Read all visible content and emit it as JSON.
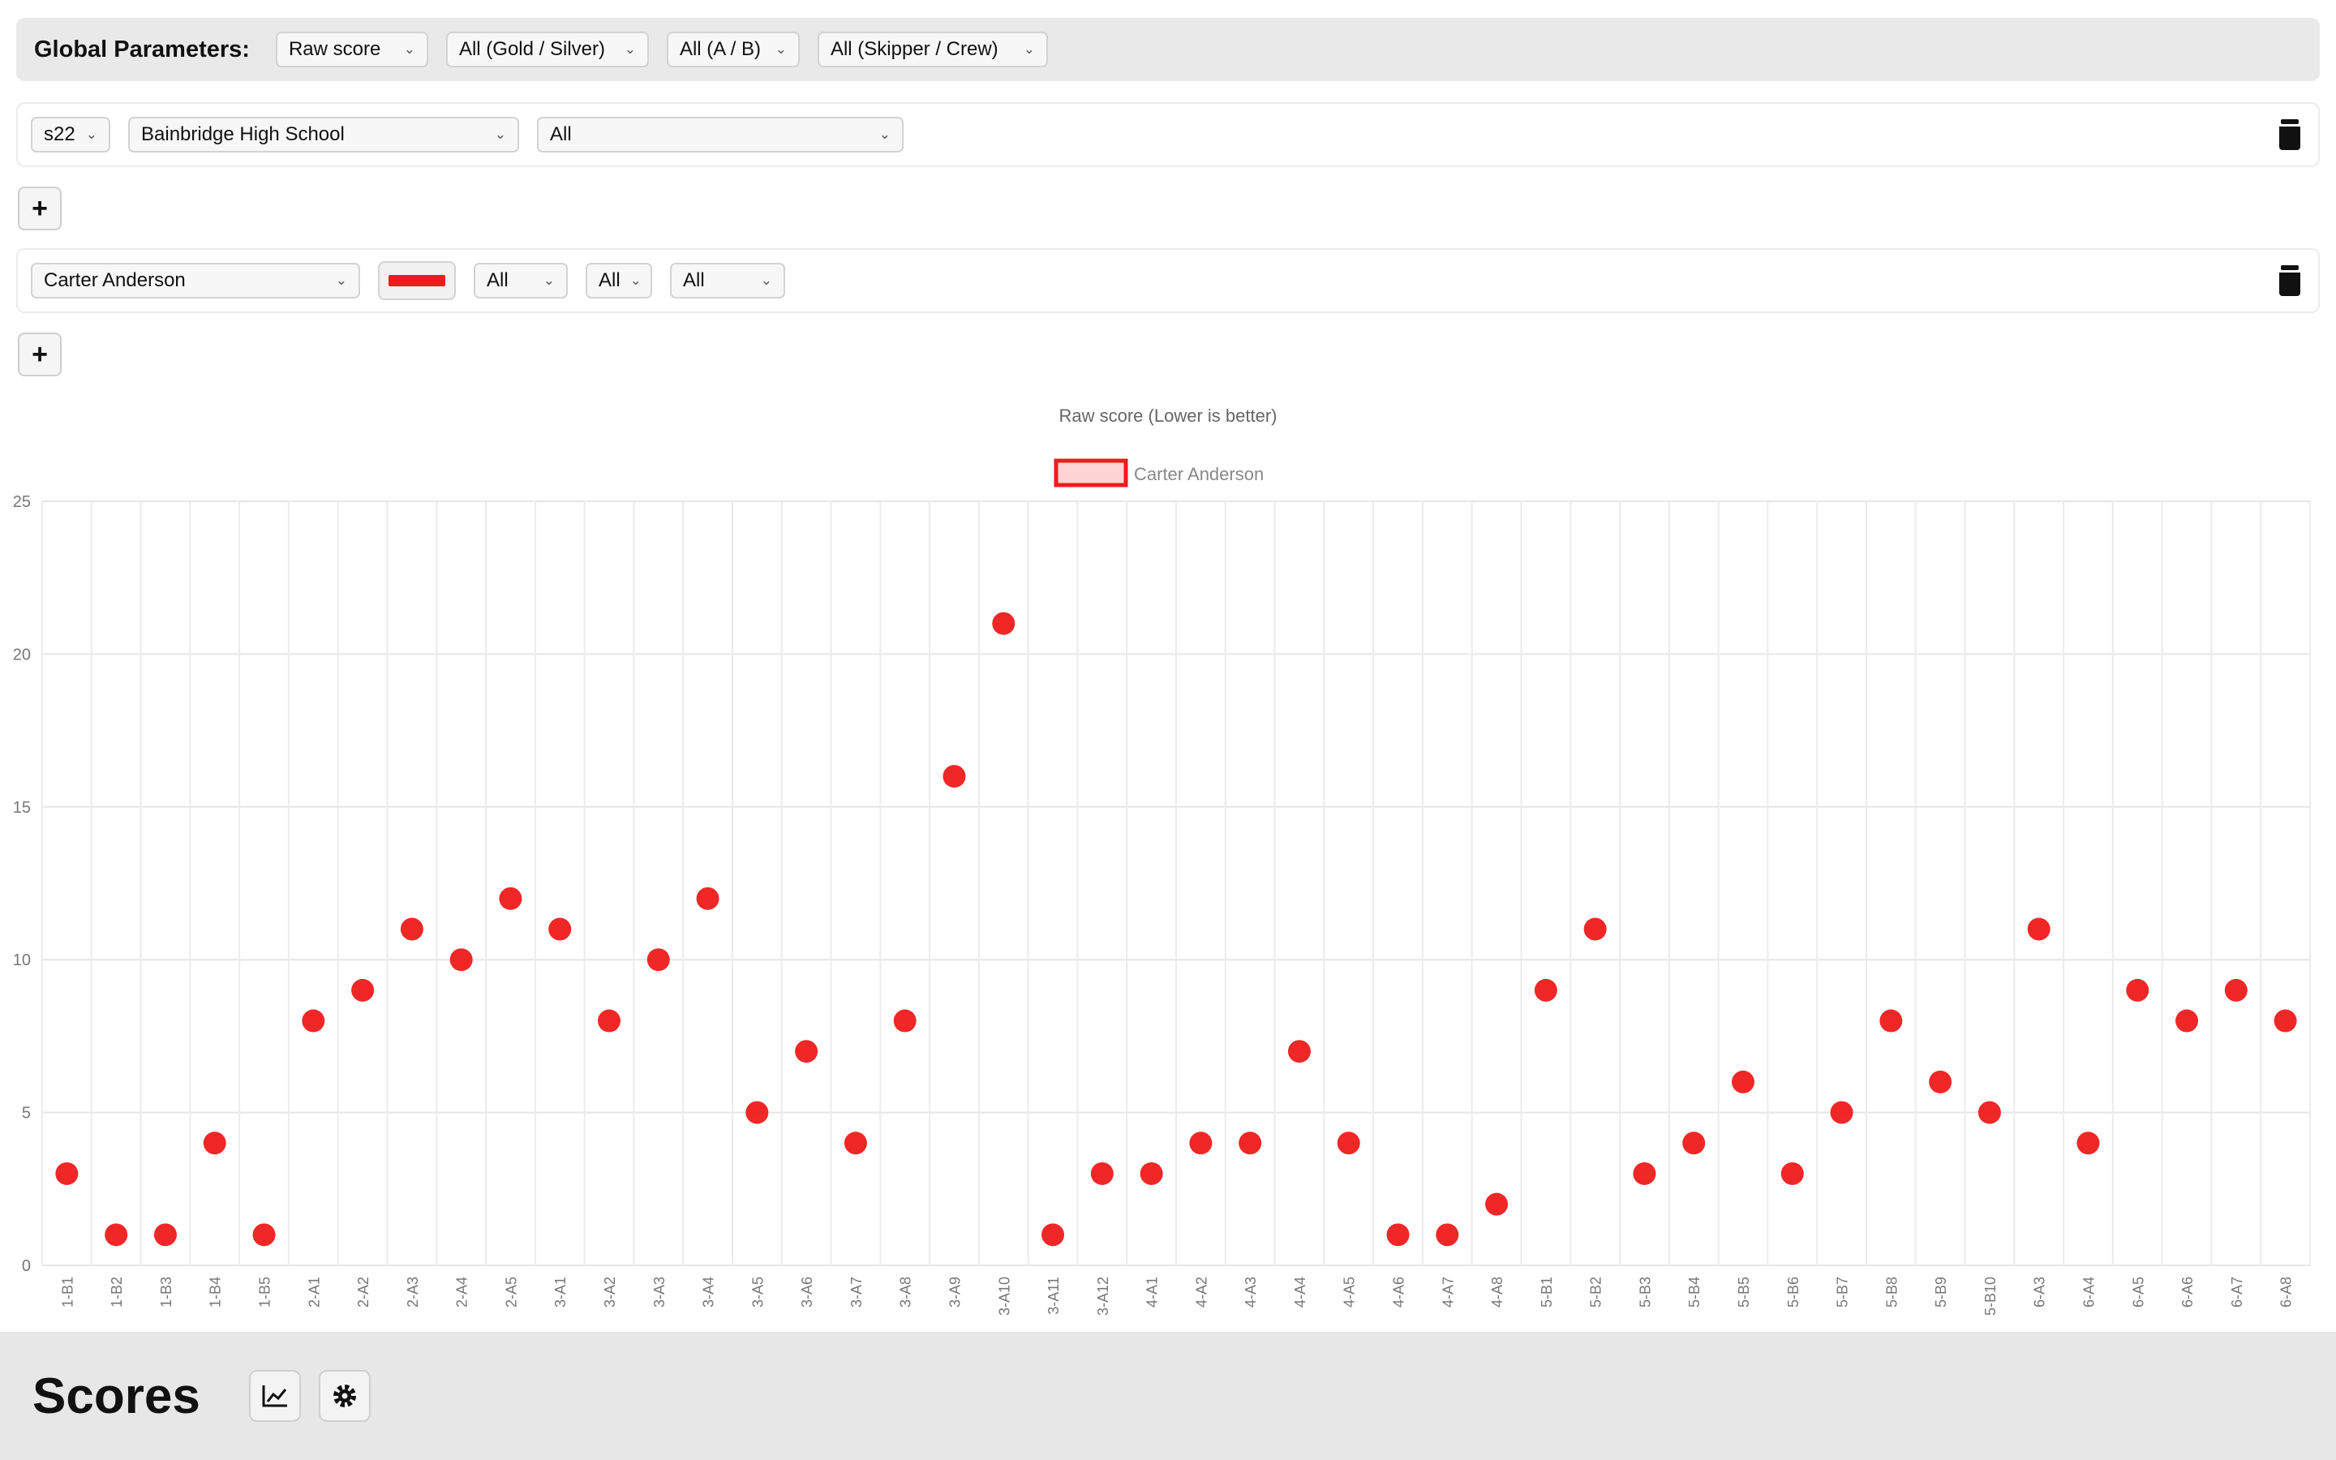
{
  "global": {
    "label": "Global Parameters:",
    "metric": "Raw score",
    "fleet": "All (Gold / Silver)",
    "division": "All (A / B)",
    "role": "All (Skipper / Crew)"
  },
  "school_row": {
    "season": "s22",
    "school": "Bainbridge High School",
    "filter": "All"
  },
  "sailor_row": {
    "sailor": "Carter Anderson",
    "color": "#ef1b1b",
    "filter1": "All",
    "filter2": "All",
    "filter3": "All"
  },
  "footer": {
    "title": "Scores",
    "chart_icon": "line-chart-icon",
    "settings_icon": "gear-icon"
  },
  "chart_data": {
    "type": "scatter",
    "title": "Raw score (Lower is better)",
    "legend_position": "top-center",
    "grid": true,
    "ylim": [
      0,
      25
    ],
    "yticks": [
      0,
      5,
      10,
      15,
      20,
      25
    ],
    "categories": [
      "1-B1",
      "1-B2",
      "1-B3",
      "1-B4",
      "1-B5",
      "2-A1",
      "2-A2",
      "2-A3",
      "2-A4",
      "2-A5",
      "3-A1",
      "3-A2",
      "3-A3",
      "3-A4",
      "3-A5",
      "3-A6",
      "3-A7",
      "3-A8",
      "3-A9",
      "3-A10",
      "3-A11",
      "3-A12",
      "4-A1",
      "4-A2",
      "4-A3",
      "4-A4",
      "4-A5",
      "4-A6",
      "4-A7",
      "4-A8",
      "5-B1",
      "5-B2",
      "5-B3",
      "5-B4",
      "5-B5",
      "5-B6",
      "5-B7",
      "5-B8",
      "5-B9",
      "5-B10",
      "6-A3",
      "6-A4",
      "6-A5",
      "6-A6",
      "6-A7",
      "6-A8"
    ],
    "series": [
      {
        "name": "Carter Anderson",
        "color": "#ef1b1b",
        "values": [
          3,
          1,
          1,
          4,
          1,
          8,
          9,
          11,
          10,
          12,
          11,
          8,
          10,
          12,
          5,
          7,
          4,
          8,
          16,
          21,
          1,
          3,
          3,
          4,
          4,
          7,
          4,
          1,
          1,
          2,
          9,
          11,
          3,
          4,
          6,
          3,
          5,
          8,
          6,
          5,
          11,
          4,
          9,
          8,
          9,
          8
        ]
      }
    ]
  }
}
